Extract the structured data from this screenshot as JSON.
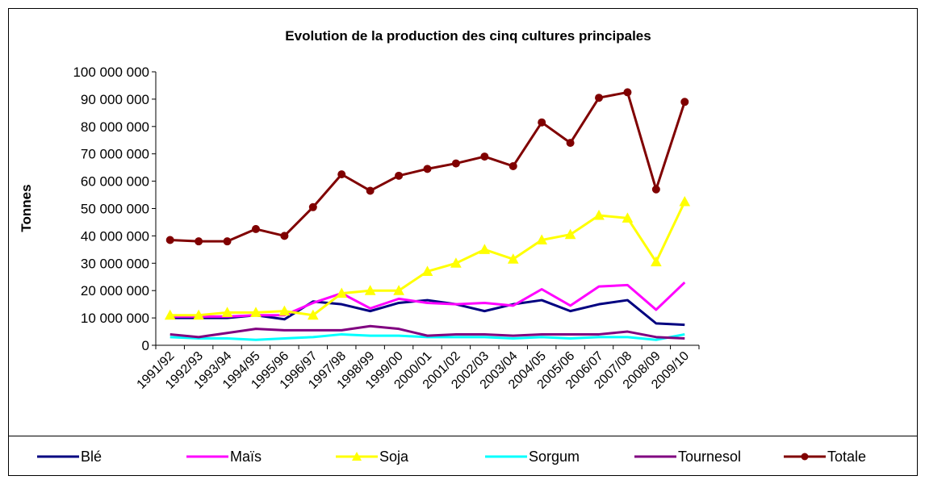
{
  "chart_data": {
    "type": "line",
    "title": "Evolution de la production des cinq cultures principales",
    "y_label": "Tonnes",
    "categories": [
      "1991/92",
      "1992/93",
      "1993/94",
      "1994/95",
      "1995/96",
      "1996/97",
      "1997/98",
      "1998/99",
      "1999/00",
      "2000/01",
      "2001/02",
      "2002/03",
      "2003/04",
      "2004/05",
      "2005/06",
      "2006/07",
      "2007/08",
      "2008/09",
      "2009/10"
    ],
    "ylim": [
      0,
      100000000
    ],
    "yticks": [
      {
        "value": 0,
        "label": "0"
      },
      {
        "value": 10000000,
        "label": "10 000 000"
      },
      {
        "value": 20000000,
        "label": "20 000 000"
      },
      {
        "value": 30000000,
        "label": "30 000 000"
      },
      {
        "value": 40000000,
        "label": "40 000 000"
      },
      {
        "value": 50000000,
        "label": "50 000 000"
      },
      {
        "value": 60000000,
        "label": "60 000 000"
      },
      {
        "value": 70000000,
        "label": "70 000 000"
      },
      {
        "value": 80000000,
        "label": "80 000 000"
      },
      {
        "value": 90000000,
        "label": "90 000 000"
      },
      {
        "value": 100000000,
        "label": "100 000 000"
      }
    ],
    "grid": false,
    "legend": "bottom",
    "series": [
      {
        "name": "Blé",
        "color": "#000080",
        "marker": "none",
        "values": [
          10000000,
          10000000,
          10000000,
          11000000,
          9500000,
          16000000,
          15000000,
          12500000,
          15500000,
          16500000,
          15000000,
          12500000,
          15000000,
          16500000,
          12500000,
          15000000,
          16500000,
          8000000,
          7500000
        ]
      },
      {
        "name": "Maïs",
        "color": "#ff00ff",
        "marker": "none",
        "values": [
          10500000,
          10500000,
          10500000,
          11000000,
          11000000,
          15500000,
          19000000,
          13500000,
          17000000,
          15500000,
          15000000,
          15500000,
          14500000,
          20500000,
          14500000,
          21500000,
          22000000,
          13000000,
          23000000
        ]
      },
      {
        "name": "Soja",
        "color": "#ffff00",
        "marker": "triangle",
        "values": [
          11000000,
          11000000,
          12000000,
          12000000,
          12500000,
          11000000,
          19000000,
          20000000,
          20000000,
          27000000,
          30000000,
          35000000,
          31500000,
          38500000,
          40500000,
          47500000,
          46500000,
          30500000,
          52500000
        ]
      },
      {
        "name": "Sorgum",
        "color": "#00ffff",
        "marker": "none",
        "values": [
          3000000,
          2500000,
          2500000,
          2000000,
          2500000,
          3000000,
          4000000,
          3500000,
          3500000,
          3000000,
          3000000,
          3000000,
          2500000,
          3000000,
          2500000,
          3000000,
          3000000,
          2000000,
          4000000
        ]
      },
      {
        "name": "Tournesol",
        "color": "#800080",
        "marker": "none",
        "values": [
          4000000,
          3000000,
          4500000,
          6000000,
          5500000,
          5500000,
          5500000,
          7000000,
          6000000,
          3500000,
          4000000,
          4000000,
          3500000,
          4000000,
          4000000,
          4000000,
          5000000,
          3000000,
          2500000
        ]
      },
      {
        "name": "Totale",
        "color": "#800000",
        "marker": "circle",
        "values": [
          38500000,
          38000000,
          38000000,
          42500000,
          40000000,
          50500000,
          62500000,
          56500000,
          62000000,
          64500000,
          66500000,
          69000000,
          65500000,
          81500000,
          74000000,
          90500000,
          92500000,
          57000000,
          89000000
        ]
      }
    ]
  }
}
